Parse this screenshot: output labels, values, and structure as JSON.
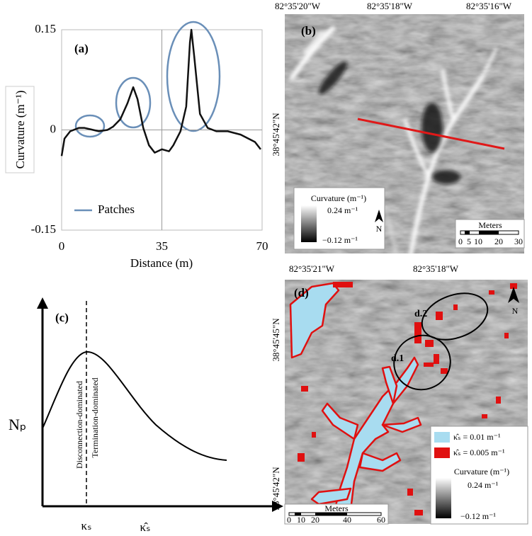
{
  "chart_data": {
    "type": "line",
    "panel_label": "(a)",
    "y_label": "Curvature (m⁻¹)",
    "x_label": "Distance (m)",
    "x": [
      0,
      1,
      3,
      6,
      8,
      11,
      13,
      16,
      18,
      20.5,
      23,
      25,
      26.5,
      28.5,
      30.5,
      32.5,
      35,
      37.5,
      39,
      41.5,
      43.5,
      44.8,
      45.3,
      46.3,
      48.3,
      51,
      54,
      58,
      62.5,
      67.5,
      69.5
    ],
    "values": [
      -0.039,
      -0.013,
      -0.002,
      0.003,
      0.003,
      0,
      -0.002,
      0,
      0.005,
      0.016,
      0.04,
      0.064,
      0.046,
      0.003,
      -0.023,
      -0.034,
      -0.029,
      -0.032,
      -0.023,
      -0.002,
      0.035,
      0.131,
      0.15,
      0.11,
      0.024,
      0.003,
      -0.002,
      -0.002,
      -0.007,
      -0.018,
      -0.029
    ],
    "color": "#111111",
    "xlim": [
      0,
      70
    ],
    "xticks": [
      0,
      35,
      70
    ],
    "ylim": [
      -0.15,
      0.15
    ],
    "yticks": [
      -0.15,
      0,
      0.15
    ],
    "legend": {
      "label": "Patches",
      "color": "#6a8fb8"
    }
  },
  "panel_b": {
    "label": "(b)",
    "top_coords": [
      "82°35'20\"W",
      "82°35'18\"W",
      "82°35'16\"W"
    ],
    "left_coord": "38°45'42\"N",
    "legend_title": "Curvature (m⁻¹)",
    "legend_high": "0.24 m⁻¹",
    "legend_low": "−0.12 m⁻¹",
    "north": "N",
    "scale_title": "Meters",
    "scale_ticks": [
      "0",
      "5",
      "10",
      "20",
      "30"
    ]
  },
  "panel_c": {
    "label": "(c)",
    "y_label": "Nₚ",
    "x_tick": "κₛ",
    "x_label": "κ̂ₛ",
    "left_note": "Disconnection-dominated",
    "right_note": "Termination-dominated"
  },
  "panel_d": {
    "label": "(d)",
    "top_coords": [
      "82°35'21\"W",
      "82°35'18\"W"
    ],
    "left_coords": [
      "38°45'45\"N",
      "38°45'42\"N"
    ],
    "zones": [
      "d.1",
      "d.2"
    ],
    "legend_items": [
      "κ̂ₛ = 0.01 m⁻¹",
      "κ̂ₛ = 0.005 m⁻¹"
    ],
    "legend_title": "Curvature (m⁻¹)",
    "legend_high": "0.24 m⁻¹",
    "legend_low": "−0.12 m⁻¹",
    "north": "N",
    "scale_title": "Meters",
    "scale_ticks": [
      "0",
      "10",
      "20",
      "40",
      "60"
    ]
  }
}
